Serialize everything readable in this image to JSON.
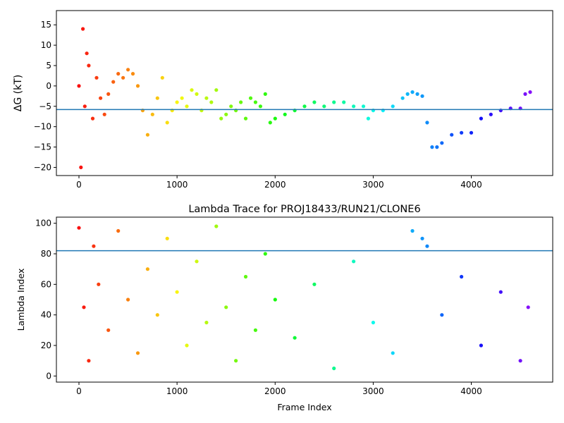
{
  "chart_data": [
    {
      "type": "scatter",
      "title": "",
      "xlabel": "",
      "ylabel": "ΔG (kT)",
      "xlim": [
        -230,
        4830
      ],
      "ylim": [
        -22,
        18.5
      ],
      "xticks": [
        0,
        1000,
        2000,
        3000,
        4000
      ],
      "yticks": [
        15,
        10,
        5,
        0,
        -5,
        -10,
        -15,
        -20
      ],
      "reference_line": -5.8,
      "colormap": "rainbow (red at early frames → violet at late frames)",
      "series": [
        {
          "x": [
            0,
            20,
            40,
            60,
            80,
            100,
            140,
            180,
            220,
            260,
            300,
            350,
            400,
            450,
            500,
            550,
            600,
            650,
            700,
            750,
            800,
            850,
            900,
            950,
            1000,
            1050,
            1100,
            1150,
            1200,
            1250,
            1300,
            1350,
            1400,
            1450,
            1500,
            1550,
            1600,
            1650,
            1700,
            1750,
            1800,
            1850,
            1900,
            1950,
            2000,
            2100,
            2200,
            2300,
            2400,
            2500,
            2600,
            2700,
            2800,
            2900,
            2950,
            3000,
            3100,
            3200,
            3300,
            3350,
            3400,
            3450,
            3500,
            3550,
            3600,
            3650,
            3700,
            3800,
            3900,
            4000,
            4100,
            4200,
            4300,
            4400,
            4500,
            4550,
            4600
          ],
          "y": [
            0,
            -20,
            14,
            -5,
            8,
            5,
            -8,
            2,
            -3,
            -7,
            -2,
            1,
            3,
            2,
            4,
            3,
            0,
            -6,
            -12,
            -7,
            -3,
            2,
            -9,
            -6,
            -4,
            -3,
            -5,
            -1,
            -2,
            -6,
            -3,
            -4,
            -1,
            -8,
            -7,
            -5,
            -6,
            -4,
            -8,
            -3,
            -4,
            -5,
            -2,
            -9,
            -8,
            -7,
            -6,
            -5,
            -4,
            -5,
            -4,
            -4,
            -5,
            -5,
            -8,
            -6,
            -6,
            -5,
            -3,
            -2,
            -1.5,
            -2,
            -2.5,
            -9,
            -15,
            -15,
            -14,
            -12,
            -11.5,
            -11.5,
            -8,
            -7,
            -6,
            -5.5,
            -5.5,
            -2,
            -1.5
          ]
        }
      ]
    },
    {
      "type": "scatter",
      "title": "Lambda Trace for PROJ18433/RUN21/CLONE6",
      "xlabel": "Frame Index",
      "ylabel": "Lambda Index",
      "xlim": [
        -230,
        4830
      ],
      "ylim": [
        -4,
        104
      ],
      "xticks": [
        0,
        1000,
        2000,
        3000,
        4000
      ],
      "yticks": [
        100,
        80,
        60,
        40,
        20,
        0
      ],
      "reference_line": 82,
      "colormap": "rainbow (red at early frames → violet at late frames)",
      "series": [
        {
          "x": [
            0,
            50,
            100,
            150,
            200,
            300,
            400,
            500,
            600,
            700,
            800,
            900,
            1000,
            1100,
            1200,
            1300,
            1400,
            1500,
            1600,
            1700,
            1800,
            1900,
            2000,
            2200,
            2400,
            2600,
            2800,
            3000,
            3200,
            3400,
            3500,
            3550,
            3700,
            3900,
            4100,
            4300,
            4500,
            4580
          ],
          "y": [
            97,
            45,
            10,
            85,
            60,
            30,
            95,
            50,
            15,
            70,
            40,
            90,
            55,
            20,
            75,
            35,
            98,
            45,
            10,
            65,
            30,
            80,
            50,
            25,
            60,
            5,
            75,
            35,
            15,
            95,
            90,
            85,
            40,
            65,
            20,
            55,
            10,
            45
          ]
        }
      ]
    }
  ]
}
